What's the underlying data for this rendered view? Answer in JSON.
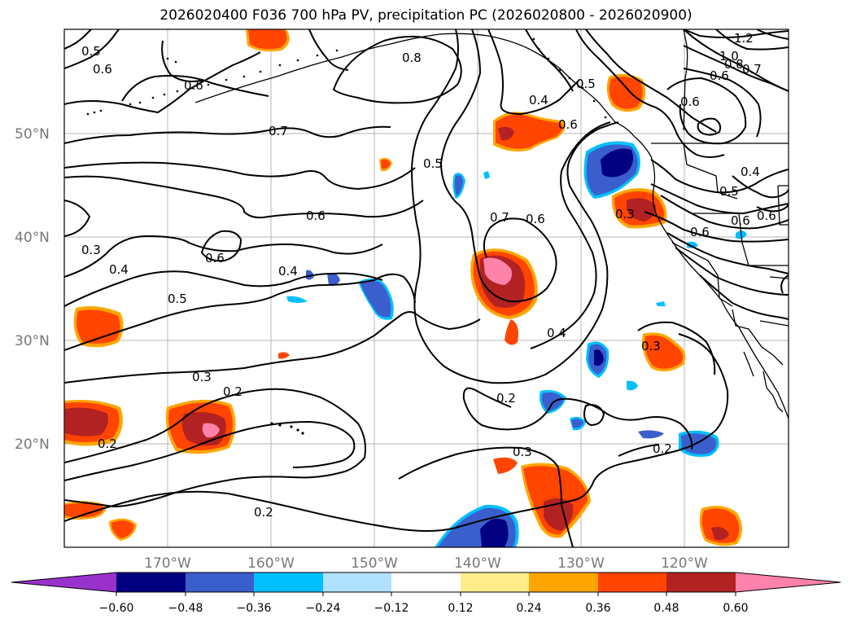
{
  "title": "2026020400 F036 700 hPa PV, precipitation PC (2026020800 - 2026020900)",
  "map": {
    "longitude_labels": [
      "170°W",
      "160°W",
      "150°W",
      "140°W",
      "130°W",
      "120°W"
    ],
    "latitude_labels": [
      "20°N",
      "30°N",
      "40°N",
      "50°N"
    ],
    "contour_labels": [
      "0.5",
      "0.6",
      "0.6",
      "0.8",
      "0.4",
      "0.5",
      "0.6",
      "1.2",
      "1.0",
      "0.8",
      "0.7",
      "0.6",
      "0.6",
      "0.7",
      "0.5",
      "0.4",
      "0.5",
      "0.6",
      "0.3",
      "0.6",
      "0.6",
      "0.7",
      "0.6",
      "0.6",
      "0.3",
      "0.4",
      "0.4",
      "0.6",
      "0.5",
      "0.4",
      "0.3",
      "0.3",
      "0.2",
      "0.2",
      "0.2",
      "0.3",
      "0.2",
      "0.2"
    ]
  },
  "colorbar": {
    "tick_labels": [
      "−0.60",
      "−0.48",
      "−0.36",
      "−0.24",
      "−0.12",
      "0.12",
      "0.24",
      "0.36",
      "0.48",
      "0.60"
    ],
    "colors": [
      "#9932cc",
      "#000080",
      "#3a5fcd",
      "#00bfff",
      "#b0e2ff",
      "#ffffff",
      "#ffec8b",
      "#ffa500",
      "#ff4500",
      "#b22222",
      "#ff82ab"
    ]
  }
}
